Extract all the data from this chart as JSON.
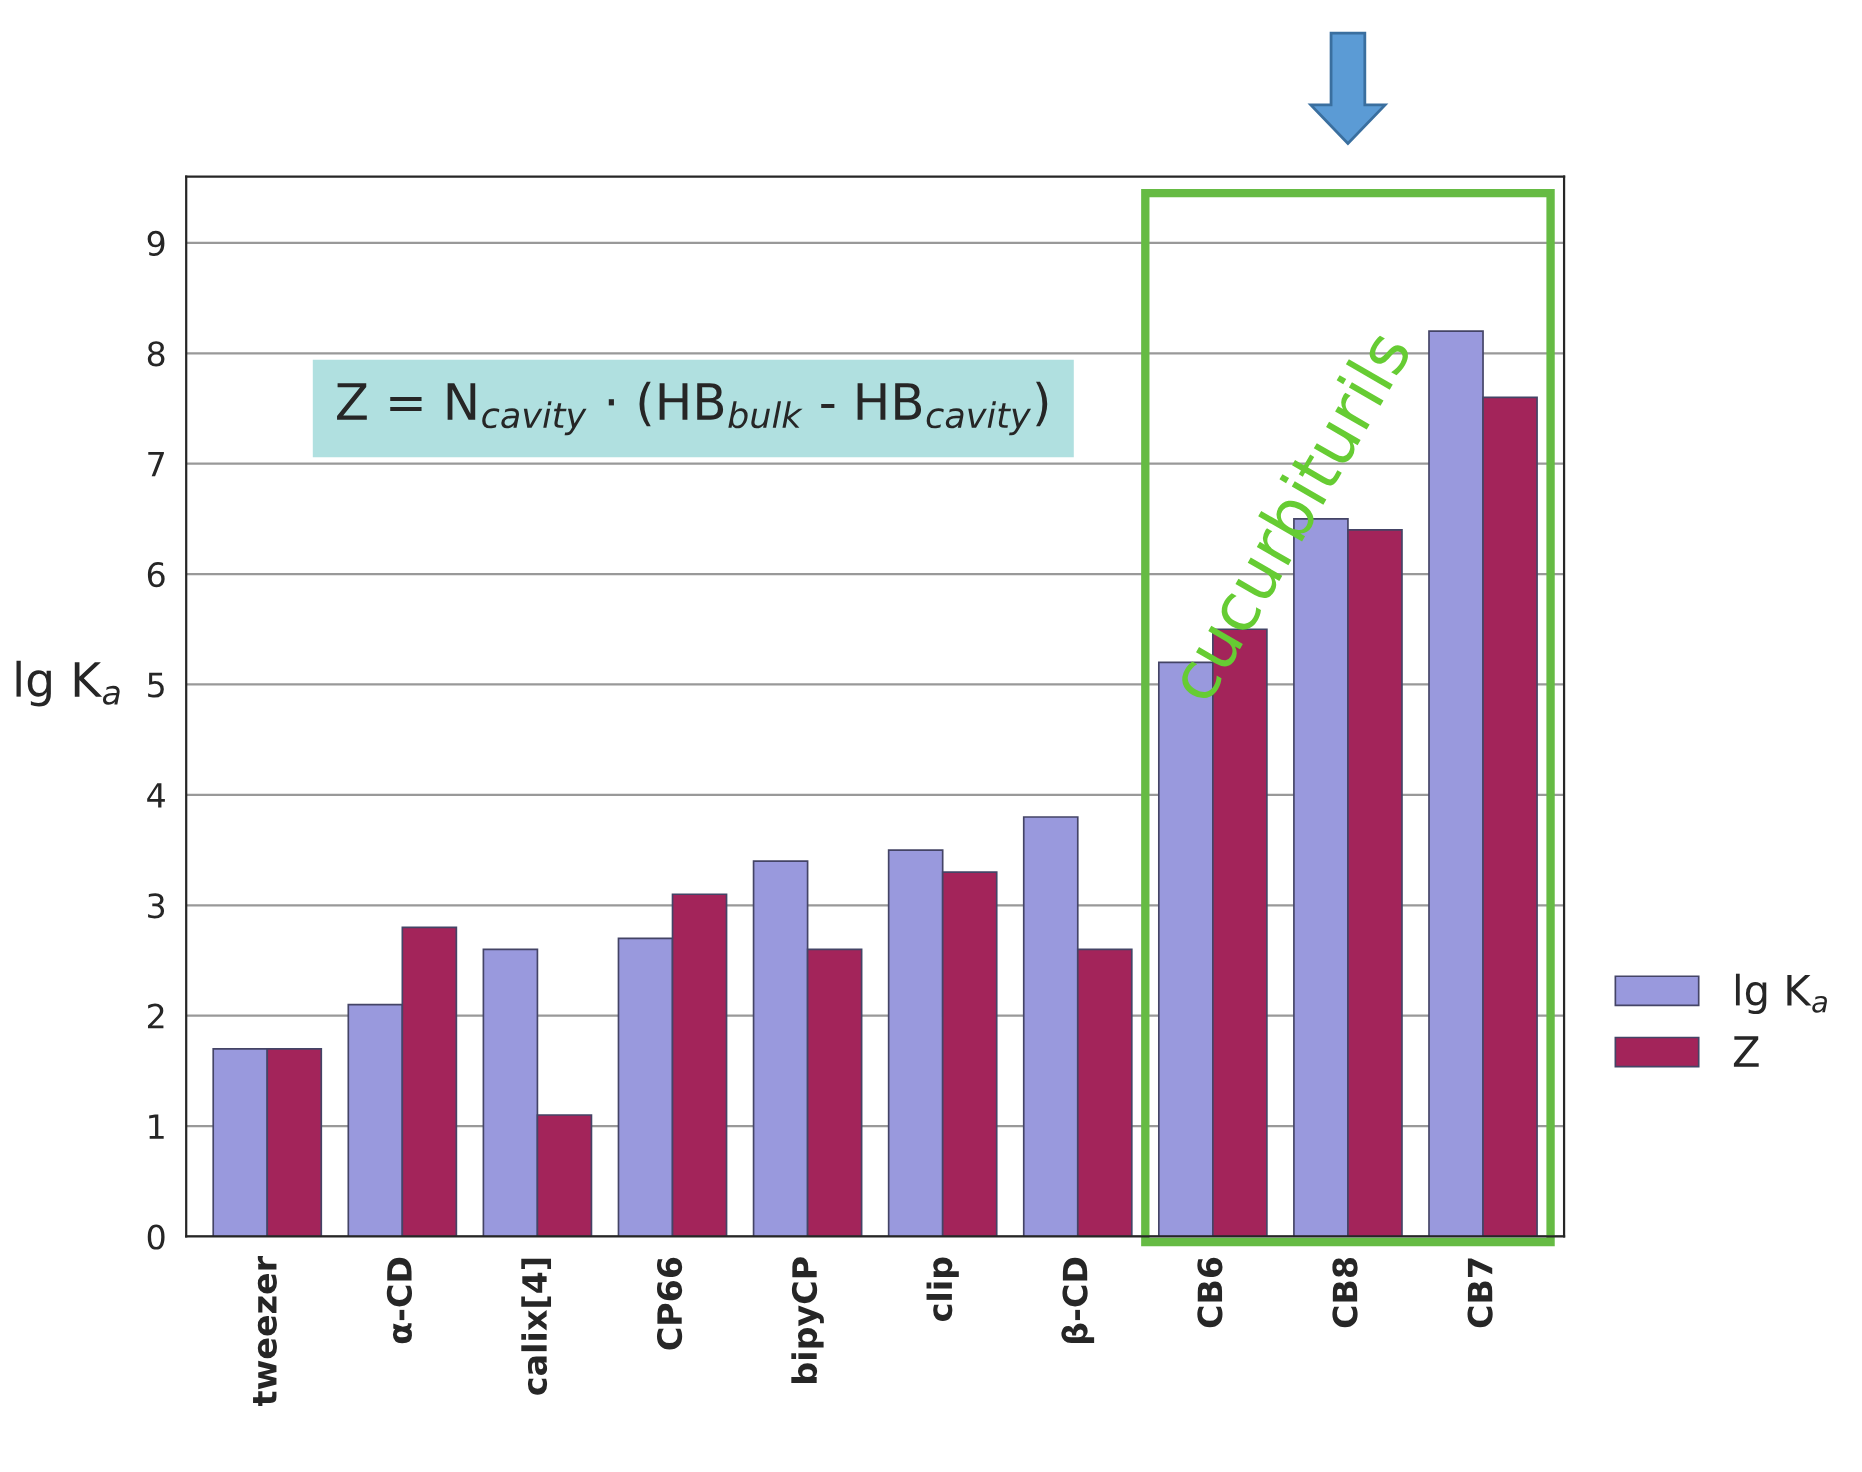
{
  "chart_data": {
    "type": "bar",
    "ylabel": "lg K$_{a}$",
    "categories": [
      "tweezer",
      "α-CD",
      "calix[4]",
      "CP66",
      "bipyCP",
      "clip",
      "β-CD",
      "CB6",
      "CB8",
      "CB7"
    ],
    "series": [
      {
        "name": "lg K$_{a}$",
        "color": "#9999dd",
        "values": [
          1.7,
          2.1,
          2.6,
          2.7,
          3.4,
          3.5,
          3.8,
          5.2,
          6.5,
          8.2
        ]
      },
      {
        "name": "Z",
        "color": "#a3245a",
        "values": [
          1.7,
          2.8,
          1.1,
          3.1,
          2.6,
          3.3,
          2.6,
          5.5,
          6.4,
          7.6
        ]
      }
    ],
    "ylim": [
      0,
      9.6
    ],
    "yticks": [
      0,
      1,
      2,
      3,
      4,
      5,
      6,
      7,
      8,
      9
    ],
    "grid": "y",
    "legend": "right",
    "annotations": [
      "Z = N$_{cavity}$ · (HB$_{bulk}$ - HB$_{cavity}$)",
      "cucurbiturils"
    ]
  }
}
